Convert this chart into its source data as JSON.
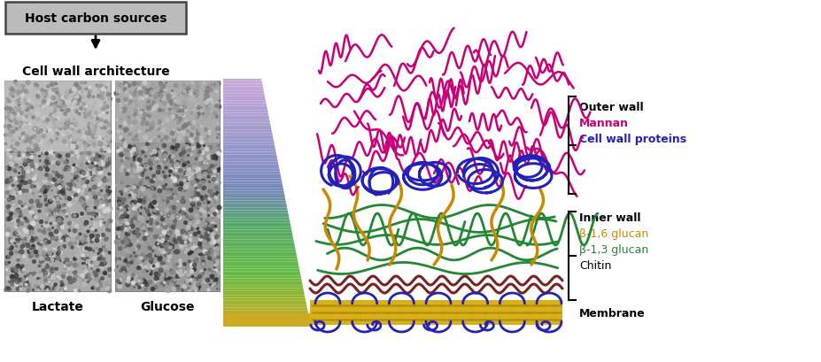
{
  "box_text": "Host carbon sources",
  "arrow_label": "Cell wall architecture",
  "label_lactate": "Lactate",
  "label_glucose": "Glucose",
  "label_outer_wall": "Outer wall",
  "label_mannan": "Mannan",
  "label_cwp": "Cell wall proteins",
  "label_inner_wall": "Inner wall",
  "label_b16": "β-1,6 glucan",
  "label_b13": "β-1,3 glucan",
  "label_chitin": "Chitin",
  "label_membrane": "Membrane",
  "color_mannan": "#C8007A",
  "color_cwp": "#2222BB",
  "color_b16": "#CC8800",
  "color_b13": "#228833",
  "color_chitin": "#7A2222",
  "color_membrane_gold": "#D4A800",
  "color_box_fill": "#BBBBBB",
  "color_box_edge": "#444444",
  "color_black": "#000000",
  "bg_color": "#FFFFFF",
  "figsize": [
    9.28,
    4.1
  ],
  "dpi": 100
}
